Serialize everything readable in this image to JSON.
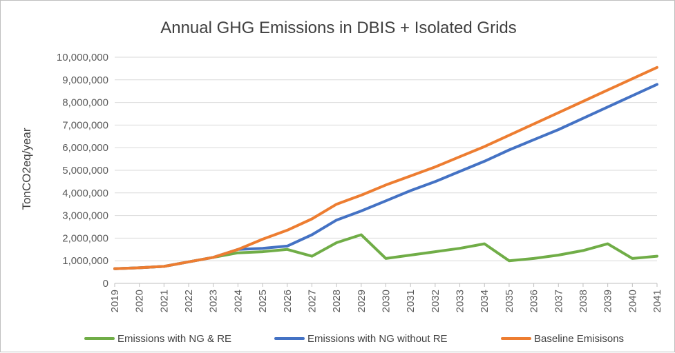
{
  "chart_data": {
    "type": "line",
    "title": "Annual GHG Emissions in DBIS + Isolated Grids",
    "xlabel": "",
    "ylabel": "TonCO2eq/year",
    "ylim": [
      0,
      10000000
    ],
    "y_ticks": [
      0,
      1000000,
      2000000,
      3000000,
      4000000,
      5000000,
      6000000,
      7000000,
      8000000,
      9000000,
      10000000
    ],
    "y_tick_labels": [
      "0",
      "1,000,000",
      "2,000,000",
      "3,000,000",
      "4,000,000",
      "5,000,000",
      "6,000,000",
      "7,000,000",
      "8,000,000",
      "9,000,000",
      "10,000,000"
    ],
    "grid": "horizontal",
    "legend_position": "bottom",
    "x": [
      "2019",
      "2020",
      "2021",
      "2022",
      "2023",
      "2024",
      "2025",
      "2026",
      "2027",
      "2028",
      "2029",
      "2030",
      "2031",
      "2032",
      "2033",
      "2034",
      "2035",
      "2036",
      "2037",
      "2038",
      "2039",
      "2040",
      "2041"
    ],
    "series": [
      {
        "name": "Emissions with NG & RE",
        "color": "#70ad47",
        "values": [
          650000,
          690000,
          750000,
          950000,
          1150000,
          1350000,
          1400000,
          1500000,
          1200000,
          1800000,
          2150000,
          1100000,
          1250000,
          1400000,
          1550000,
          1750000,
          1000000,
          1100000,
          1250000,
          1450000,
          1750000,
          1100000,
          1200000
        ]
      },
      {
        "name": "Emissions with NG without RE",
        "color": "#4472c4",
        "values": [
          650000,
          690000,
          750000,
          950000,
          1150000,
          1500000,
          1550000,
          1650000,
          2150000,
          2800000,
          3200000,
          3650000,
          4100000,
          4500000,
          4950000,
          5400000,
          5900000,
          6350000,
          6800000,
          7300000,
          7800000,
          8300000,
          8800000
        ]
      },
      {
        "name": "Baseline Emisisons",
        "color": "#ed7d31",
        "values": [
          650000,
          690000,
          750000,
          950000,
          1150000,
          1500000,
          1950000,
          2350000,
          2850000,
          3500000,
          3900000,
          4350000,
          4750000,
          5150000,
          5600000,
          6050000,
          6550000,
          7050000,
          7550000,
          8050000,
          8550000,
          9050000,
          9550000
        ]
      }
    ]
  }
}
